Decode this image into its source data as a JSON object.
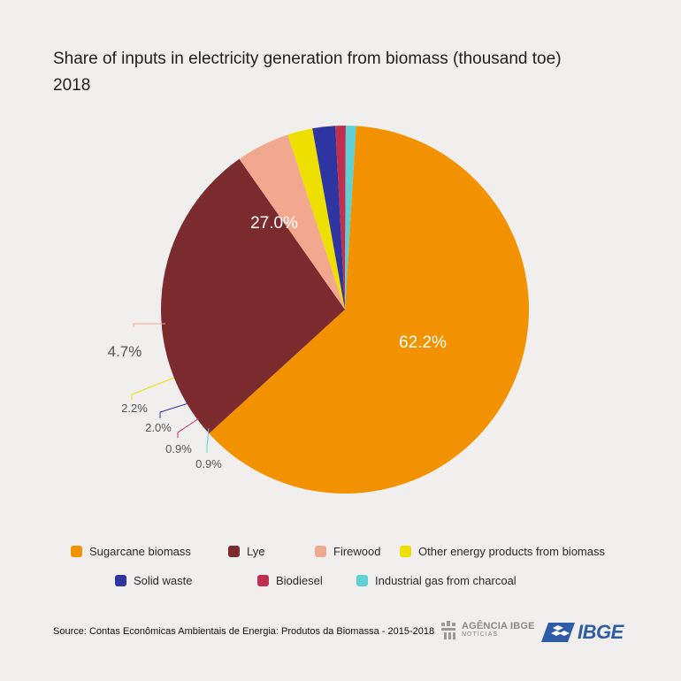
{
  "chart_data": {
    "type": "pie",
    "title": "Share of inputs in electricity generation from biomass (thousand toe)",
    "subtitle": "2018",
    "slices": [
      {
        "label": "Sugarcane biomass",
        "value": 62.2,
        "value_label": "62.2%",
        "color": "#f39200"
      },
      {
        "label": "Lye",
        "value": 27.0,
        "value_label": "27.0%",
        "color": "#7b2a2e"
      },
      {
        "label": "Firewood",
        "value": 4.7,
        "value_label": "4.7%",
        "color": "#f2a78f"
      },
      {
        "label": "Other energy products from biomass",
        "value": 2.2,
        "value_label": "2.2%",
        "color": "#ede000"
      },
      {
        "label": "Solid waste",
        "value": 2.0,
        "value_label": "2.0%",
        "color": "#2e35a0"
      },
      {
        "label": "Biodiesel",
        "value": 0.9,
        "value_label": "0.9%",
        "color": "#c0304e"
      },
      {
        "label": "Industrial gas from charcoal",
        "value": 0.9,
        "value_label": "0.9%",
        "color": "#5fd0d4"
      }
    ],
    "legend_position": "bottom"
  },
  "footer": {
    "source": "Source: Contas Econômicas Ambientais de Energia: Produtos da Biomassa - 2015-2018",
    "agencia_top": "AGÊNCIA IBGE",
    "agencia_bottom": "NOTÍCIAS",
    "ibge_logo": "IBGE"
  }
}
